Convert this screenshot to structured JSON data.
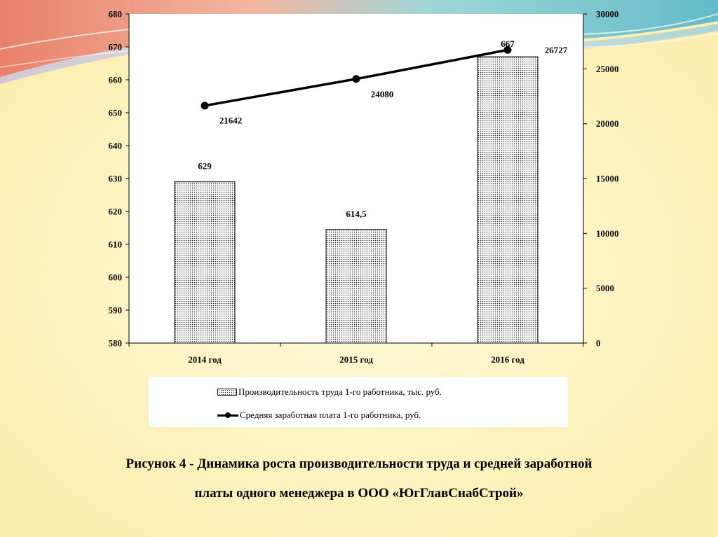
{
  "chart_data": {
    "type": "bar",
    "categories": [
      "2014 год",
      "2015 год",
      "2016 год"
    ],
    "series": [
      {
        "name": "Производительность труда 1-го работника, тыс. руб.",
        "type": "bar",
        "axis": "left",
        "values": [
          629,
          614.5,
          667
        ],
        "labels": [
          "629",
          "614,5",
          "667"
        ]
      },
      {
        "name": "Средняя заработная плата 1-го работника, руб.",
        "type": "line",
        "axis": "right",
        "values": [
          21642,
          24080,
          26727
        ],
        "labels": [
          "21642",
          "24080",
          "26727"
        ]
      }
    ],
    "y_left": {
      "min": 580,
      "max": 680,
      "step": 10,
      "ticks": [
        "580",
        "590",
        "600",
        "610",
        "620",
        "630",
        "640",
        "650",
        "660",
        "670",
        "680"
      ]
    },
    "y_right": {
      "min": 0,
      "max": 30000,
      "step": 5000,
      "ticks": [
        "0",
        "5000",
        "10000",
        "15000",
        "20000",
        "25000",
        "30000"
      ]
    },
    "grid": false,
    "legend_position": "bottom",
    "bar_pattern": "dotted",
    "line_color": "#000000"
  },
  "caption": {
    "line1": "Рисунок 4 - Динамика роста производительности труда и средней заработной",
    "line2": "платы одного менеджера в ООО «ЮгГлавСнабСтрой»"
  }
}
